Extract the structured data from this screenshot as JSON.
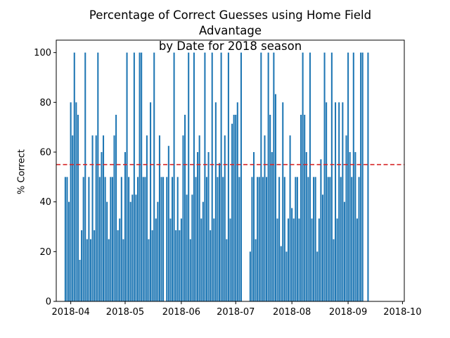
{
  "chart_data": {
    "type": "bar",
    "title_line1": "Percentage of Correct Guesses using Home Field Advantage",
    "title_line2": "by Date for 2018 season",
    "xlabel": "",
    "ylabel": "% Correct",
    "ylim": [
      0,
      105
    ],
    "yticks": [
      0,
      20,
      40,
      60,
      80,
      100
    ],
    "xlim_days": [
      -8,
      184
    ],
    "xticks": [
      {
        "label": "2018-04",
        "day": 0
      },
      {
        "label": "2018-05",
        "day": 30
      },
      {
        "label": "2018-06",
        "day": 61
      },
      {
        "label": "2018-07",
        "day": 91
      },
      {
        "label": "2018-08",
        "day": 122
      },
      {
        "label": "2018-09",
        "day": 153
      },
      {
        "label": "2018-10",
        "day": 183
      }
    ],
    "reference_line": {
      "value": 55,
      "color": "#d62728",
      "style": "dashed"
    },
    "bar_color": "#1f77b4",
    "x_start_date": "2018-03-29",
    "x_day_offset_from_apr1": -3,
    "values": [
      50,
      50,
      40,
      80,
      66.7,
      100,
      80,
      75,
      16.7,
      28.6,
      50,
      100,
      25,
      50,
      25,
      66.7,
      28.6,
      66.7,
      100,
      50,
      60,
      66.7,
      50,
      40,
      25,
      50,
      50,
      66.7,
      75,
      28.6,
      33.3,
      50,
      25,
      60,
      100,
      50,
      40,
      42.9,
      100,
      42.9,
      50,
      100,
      100,
      50,
      50,
      66.7,
      25,
      80,
      28.6,
      100,
      33.3,
      40,
      66.7,
      50,
      50,
      0,
      50,
      62.5,
      33.3,
      50,
      100,
      28.6,
      50,
      28.6,
      33.3,
      66.7,
      75,
      42.9,
      100,
      25,
      42.9,
      100,
      50,
      60,
      66.7,
      33.3,
      40,
      100,
      50,
      60,
      28.6,
      100,
      33.3,
      80,
      50,
      55.6,
      100,
      50,
      66.7,
      25,
      100,
      33.3,
      71.4,
      75,
      75,
      80,
      50,
      100,
      0,
      0,
      0,
      0,
      20,
      50,
      60,
      25,
      50,
      50,
      100,
      50,
      66.7,
      50,
      100,
      75,
      60,
      100,
      83.3,
      33.3,
      50,
      22.2,
      80,
      50,
      20,
      33.3,
      66.7,
      37.5,
      33.3,
      50,
      50,
      33.3,
      75,
      100,
      75,
      60,
      50,
      100,
      33.3,
      50,
      50,
      20,
      33.3,
      57.1,
      42.9,
      100,
      80,
      50,
      50,
      100,
      25,
      80,
      33.3,
      80,
      50,
      80,
      40,
      66.7,
      100,
      60,
      50,
      100,
      60,
      33.3,
      50,
      100,
      100,
      0,
      0,
      100
    ],
    "legend": "none",
    "grid": false
  }
}
